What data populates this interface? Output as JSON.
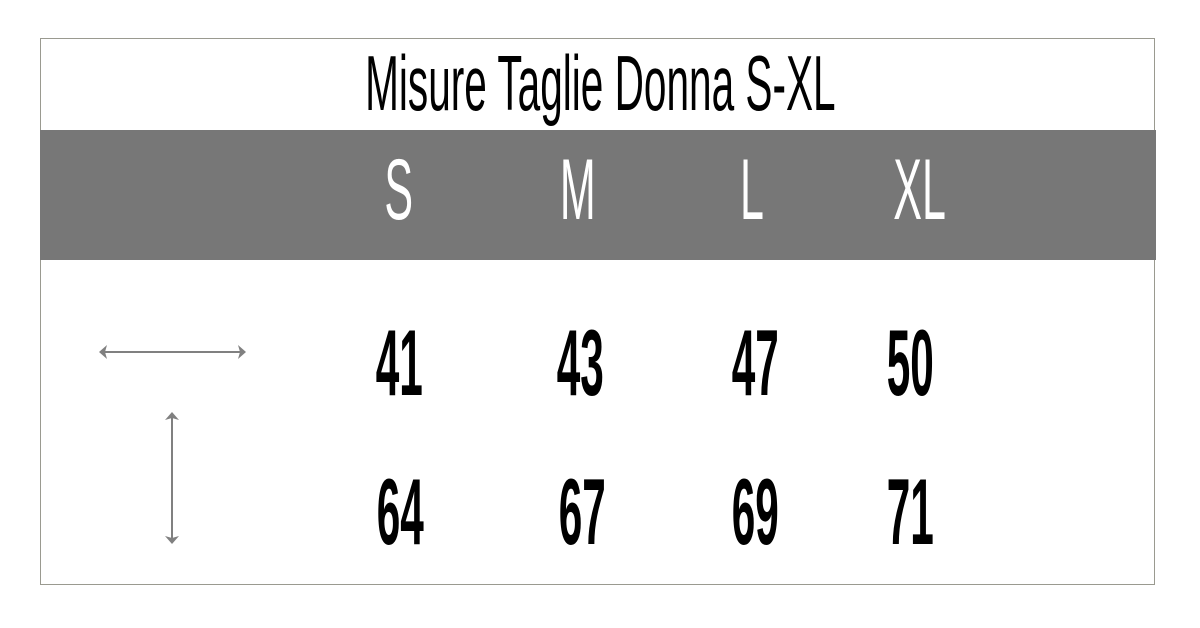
{
  "title": "Misure Taglie Donna S-XL",
  "colors": {
    "header_band": "#777777",
    "arrow": "#808080",
    "border": "#9a9a90"
  },
  "sizes": [
    "S",
    "M",
    "L",
    "XL"
  ],
  "rows": [
    {
      "icon": "horizontal-double-arrow-icon",
      "values": [
        "41",
        "43",
        "47",
        "50"
      ]
    },
    {
      "icon": "vertical-double-arrow-icon",
      "values": [
        "64",
        "67",
        "69",
        "71"
      ]
    }
  ]
}
